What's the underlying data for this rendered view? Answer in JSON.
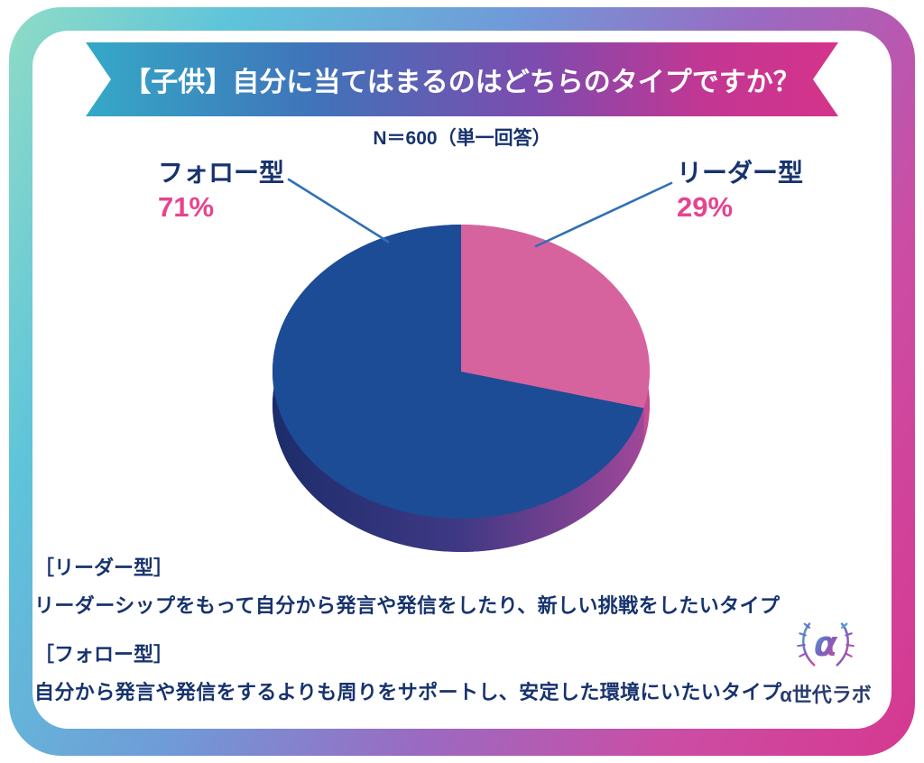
{
  "banner": {
    "title": "【子供】自分に当てはまるのはどちらのタイプですか？"
  },
  "subtitle": "N＝600（単一回答）",
  "chart_data": {
    "type": "pie",
    "title": "【子供】自分に当てはまるのはどちらのタイプですか？",
    "subtitle": "N＝600（単一回答）",
    "sample_size": 600,
    "answer_type": "単一回答",
    "start_angle_deg": -90,
    "direction": "clockwise",
    "segments": [
      {
        "key": "leader-type",
        "label": "リーダー型",
        "value": 29,
        "color": "#d7639e",
        "side_gradient": [
          "#cb5598",
          "#c14e90"
        ]
      },
      {
        "key": "follow-type",
        "label": "フォロー型",
        "value": 71,
        "color": "#1c4c96",
        "side_gradient": [
          "#1c2d6b",
          "#3f3884",
          "#a04799"
        ]
      }
    ]
  },
  "labels": {
    "left": {
      "name": "フォロー型",
      "percent": "71%"
    },
    "right": {
      "name": "リーダー型",
      "percent": "29%"
    }
  },
  "footer": {
    "items": [
      {
        "heading": "［リーダー型］",
        "text": "リーダーシップをもって自分から発言や発信をしたり、新しい挑戦をしたいタイプ"
      },
      {
        "heading": "［フォロー型］",
        "text": "自分から発言や発信をするよりも周りをサポートし、安定した環境にいたいタイプ"
      }
    ]
  },
  "logo": {
    "text": "α世代ラボ"
  },
  "colors": {
    "navy_text": "#17336e",
    "percent_pink": "#e7438f",
    "callout_line": "#2f6fb5",
    "pie_blue": "#1c4c96",
    "pie_pink": "#d7639e",
    "frame_teal": "#90dcc6",
    "frame_magenta": "#d63890"
  }
}
